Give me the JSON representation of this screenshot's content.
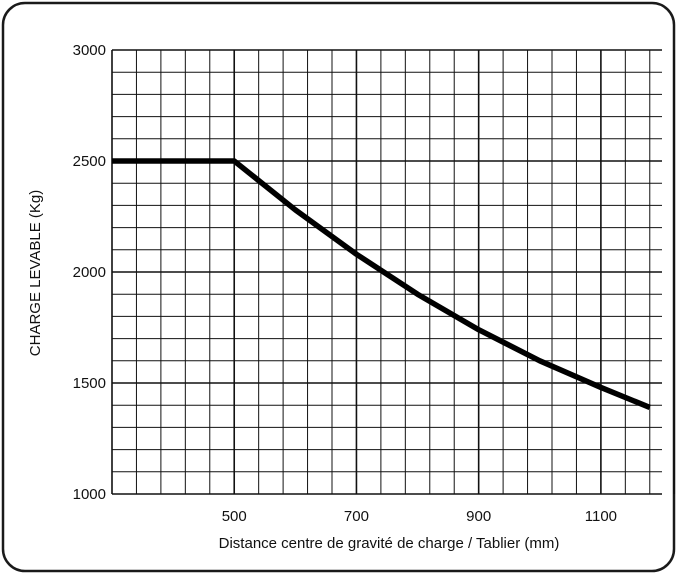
{
  "chart_data": {
    "type": "line",
    "title": "",
    "xlabel": "Distance centre de gravité de charge / Tablier (mm)",
    "ylabel": "CHARGE LEVABLE (Kg)",
    "xlim": [
      300,
      1200
    ],
    "ylim": [
      1000,
      3000
    ],
    "x_ticks": [
      500,
      700,
      900,
      1100
    ],
    "x_tick_labels": [
      "500",
      "700",
      "900",
      "1100"
    ],
    "y_ticks": [
      1000,
      1500,
      2000,
      2500,
      3000
    ],
    "y_tick_labels": [
      "1000",
      "1500",
      "2000",
      "2500",
      "3000"
    ],
    "grid": true,
    "x_minor_step": 40,
    "y_minor_step": 100,
    "line_color": "#000000",
    "series": [
      {
        "x": [
          300,
          500,
          600,
          700,
          800,
          900,
          1000,
          1100,
          1180
        ],
        "y": [
          2500,
          2500,
          2280,
          2080,
          1900,
          1740,
          1600,
          1480,
          1390
        ]
      }
    ]
  }
}
